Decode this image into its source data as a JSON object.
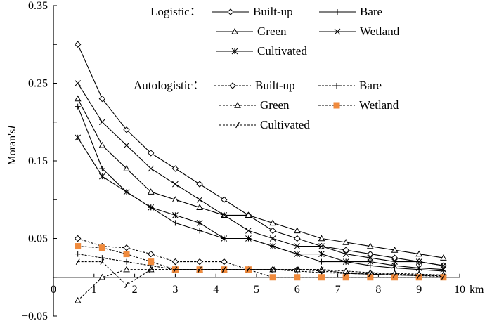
{
  "chart_data": {
    "type": "line",
    "title": "",
    "xlabel": "",
    "x_unit": "km",
    "ylabel": "Moran's",
    "ylabel_italic": "I",
    "xlim": [
      0,
      10
    ],
    "ylim": [
      -0.05,
      0.35
    ],
    "x_ticks": [
      "0",
      "1",
      "2",
      "3",
      "4",
      "5",
      "6",
      "7",
      "8",
      "9",
      "10"
    ],
    "y_ticks": [
      "−0.05",
      "0.05",
      "0.15",
      "0.25",
      "0.35"
    ],
    "grid": false,
    "legend_groups": [
      {
        "label": "Logistic：",
        "entries": [
          "Built-up",
          "Bare",
          "Green",
          "Wetland",
          "Cultivated"
        ]
      },
      {
        "label": "Autologistic：",
        "entries": [
          "Built-up",
          "Bare",
          "Green",
          "Wetland",
          "Cultivated"
        ]
      }
    ],
    "x": [
      0.6,
      1.2,
      1.8,
      2.4,
      3.0,
      3.6,
      4.2,
      4.8,
      5.4,
      6.0,
      6.6,
      7.2,
      7.8,
      8.4,
      9.0,
      9.6
    ],
    "series": [
      {
        "name": "Built-up",
        "group": "Logistic",
        "marker": "diamond",
        "style": "solid",
        "values": [
          0.3,
          0.23,
          0.19,
          0.16,
          0.14,
          0.12,
          0.1,
          0.08,
          0.06,
          0.05,
          0.04,
          0.035,
          0.03,
          0.025,
          0.02,
          0.015
        ]
      },
      {
        "name": "Bare",
        "group": "Logistic",
        "marker": "plus",
        "style": "solid",
        "values": [
          0.22,
          0.14,
          0.11,
          0.09,
          0.07,
          0.06,
          0.05,
          0.05,
          0.04,
          0.03,
          0.02,
          0.02,
          0.015,
          0.012,
          0.01,
          0.008
        ]
      },
      {
        "name": "Green",
        "group": "Logistic",
        "marker": "triangle",
        "style": "solid",
        "values": [
          0.23,
          0.17,
          0.14,
          0.11,
          0.1,
          0.09,
          0.08,
          0.08,
          0.07,
          0.06,
          0.05,
          0.045,
          0.04,
          0.035,
          0.03,
          0.025
        ]
      },
      {
        "name": "Wetland",
        "group": "Logistic",
        "marker": "x",
        "style": "solid",
        "values": [
          0.25,
          0.2,
          0.17,
          0.14,
          0.12,
          0.1,
          0.08,
          0.06,
          0.05,
          0.04,
          0.04,
          0.03,
          0.025,
          0.02,
          0.02,
          0.015
        ]
      },
      {
        "name": "Cultivated",
        "group": "Logistic",
        "marker": "asterisk",
        "style": "solid",
        "values": [
          0.18,
          0.13,
          0.11,
          0.09,
          0.08,
          0.07,
          0.05,
          0.05,
          0.04,
          0.03,
          0.03,
          0.02,
          0.02,
          0.015,
          0.012,
          0.01
        ]
      },
      {
        "name": "Built-up",
        "group": "Autologistic",
        "marker": "diamond",
        "style": "dashed",
        "values": [
          0.05,
          0.04,
          0.038,
          0.03,
          0.02,
          0.02,
          0.02,
          0.01,
          0.01,
          0.01,
          0.008,
          0.006,
          0.005,
          0.004,
          0.003,
          0.002
        ]
      },
      {
        "name": "Bare",
        "group": "Autologistic",
        "marker": "plus",
        "style": "dashed",
        "values": [
          0.03,
          0.025,
          0.02,
          0.015,
          0.01,
          0.01,
          0.01,
          0.01,
          0.01,
          0.008,
          0.006,
          0.005,
          0.004,
          0.003,
          0.002,
          0.002
        ]
      },
      {
        "name": "Green",
        "group": "Autologistic",
        "marker": "triangle",
        "style": "dashed",
        "values": [
          -0.03,
          0.0,
          0.01,
          0.01,
          0.01,
          0.01,
          0.01,
          0.01,
          0.01,
          0.01,
          0.01,
          0.008,
          0.006,
          0.005,
          0.004,
          0.003
        ]
      },
      {
        "name": "Wetland",
        "group": "Autologistic",
        "marker": "square",
        "style": "dashed",
        "color": "#f08a3c",
        "values": [
          0.04,
          0.038,
          0.03,
          0.02,
          0.01,
          0.01,
          0.01,
          0.01,
          0.0,
          0.0,
          0.0,
          0.0,
          0.0,
          0.0,
          0.0,
          0.0
        ]
      },
      {
        "name": "Cultivated",
        "group": "Autologistic",
        "marker": "slash",
        "style": "dashed",
        "values": [
          0.02,
          0.02,
          -0.01,
          0.01,
          0.01,
          0.01,
          0.01,
          0.01,
          0.01,
          0.01,
          0.01,
          0.005,
          0.004,
          0.003,
          0.002,
          0.001
        ]
      }
    ]
  }
}
